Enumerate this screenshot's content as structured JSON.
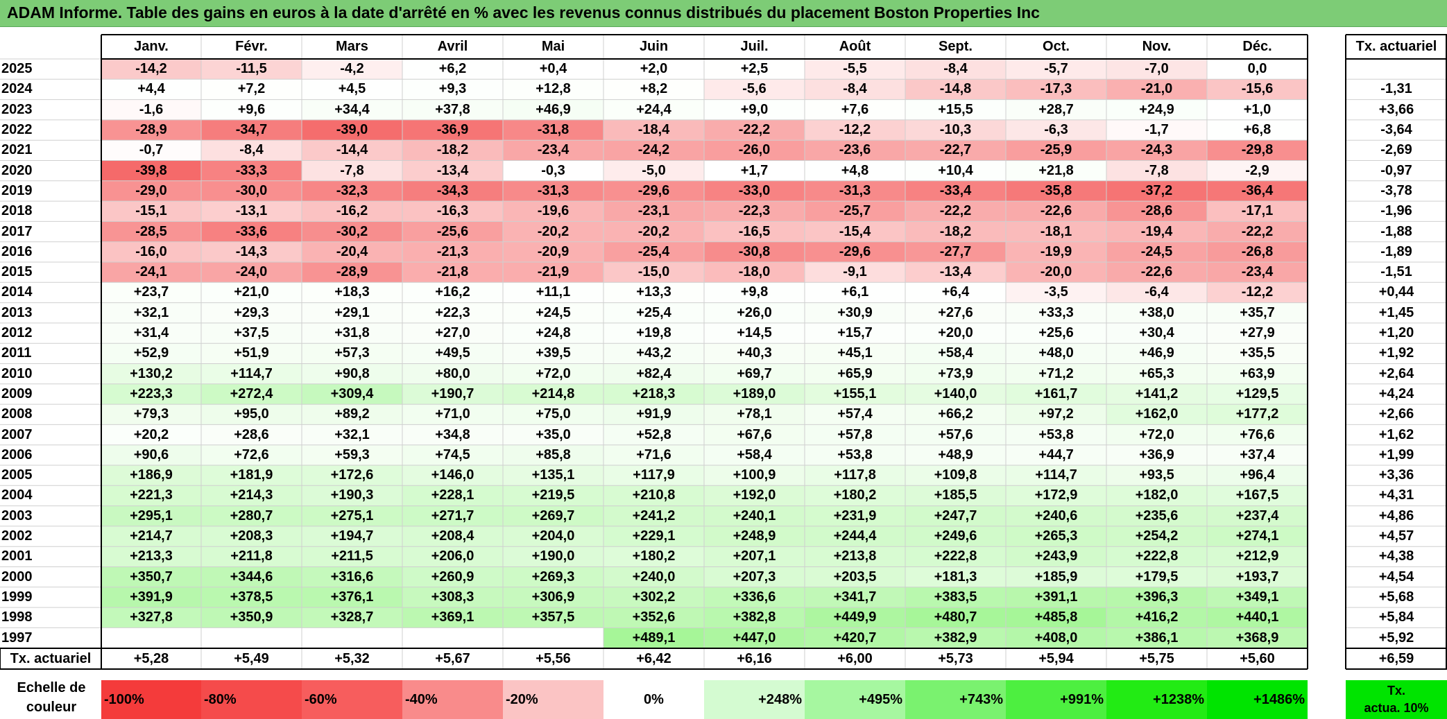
{
  "title": "ADAM Informe. Table des gains en euros à la date d'arrêté en % avec les revenus connus distribués du placement Boston Properties Inc",
  "months": [
    "Janv.",
    "Févr.",
    "Mars",
    "Avril",
    "Mai",
    "Juin",
    "Juil.",
    "Août",
    "Sept.",
    "Oct.",
    "Nov.",
    "Déc."
  ],
  "tx_header": "Tx. actuariel",
  "rows": [
    {
      "year": "2025",
      "values": [
        "-14,2",
        "-11,5",
        "-4,2",
        "+6,2",
        "+0,4",
        "+2,0",
        "+2,5",
        "-5,5",
        "-8,4",
        "-5,7",
        "-7,0",
        "0,0"
      ],
      "tx": ""
    },
    {
      "year": "2024",
      "values": [
        "+4,4",
        "+7,2",
        "+4,5",
        "+9,3",
        "+12,8",
        "+8,2",
        "-5,6",
        "-8,4",
        "-14,8",
        "-17,3",
        "-21,0",
        "-15,6"
      ],
      "tx": "-1,31"
    },
    {
      "year": "2023",
      "values": [
        "-1,6",
        "+9,6",
        "+34,4",
        "+37,8",
        "+46,9",
        "+24,4",
        "+9,0",
        "+7,6",
        "+15,5",
        "+28,7",
        "+24,9",
        "+1,0"
      ],
      "tx": "+3,66"
    },
    {
      "year": "2022",
      "values": [
        "-28,9",
        "-34,7",
        "-39,0",
        "-36,9",
        "-31,8",
        "-18,4",
        "-22,2",
        "-12,2",
        "-10,3",
        "-6,3",
        "-1,7",
        "+6,8"
      ],
      "tx": "-3,64"
    },
    {
      "year": "2021",
      "values": [
        "-0,7",
        "-8,4",
        "-14,4",
        "-18,2",
        "-23,4",
        "-24,2",
        "-26,0",
        "-23,6",
        "-22,7",
        "-25,9",
        "-24,3",
        "-29,8"
      ],
      "tx": "-2,69"
    },
    {
      "year": "2020",
      "values": [
        "-39,8",
        "-33,3",
        "-7,8",
        "-13,4",
        "-0,3",
        "-5,0",
        "+1,7",
        "+4,8",
        "+10,4",
        "+21,8",
        "-7,8",
        "-2,9"
      ],
      "tx": "-0,97"
    },
    {
      "year": "2019",
      "values": [
        "-29,0",
        "-30,0",
        "-32,3",
        "-34,3",
        "-31,3",
        "-29,6",
        "-33,0",
        "-31,3",
        "-33,4",
        "-35,8",
        "-37,2",
        "-36,4"
      ],
      "tx": "-3,78"
    },
    {
      "year": "2018",
      "values": [
        "-15,1",
        "-13,1",
        "-16,2",
        "-16,3",
        "-19,6",
        "-23,1",
        "-22,3",
        "-25,7",
        "-22,2",
        "-22,6",
        "-28,6",
        "-17,1"
      ],
      "tx": "-1,96"
    },
    {
      "year": "2017",
      "values": [
        "-28,5",
        "-33,6",
        "-30,2",
        "-25,6",
        "-20,2",
        "-20,2",
        "-16,5",
        "-15,4",
        "-18,2",
        "-18,1",
        "-19,4",
        "-22,2"
      ],
      "tx": "-1,88"
    },
    {
      "year": "2016",
      "values": [
        "-16,0",
        "-14,3",
        "-20,4",
        "-21,3",
        "-20,9",
        "-25,4",
        "-30,8",
        "-29,6",
        "-27,7",
        "-19,9",
        "-24,5",
        "-26,8"
      ],
      "tx": "-1,89"
    },
    {
      "year": "2015",
      "values": [
        "-24,1",
        "-24,0",
        "-28,9",
        "-21,8",
        "-21,9",
        "-15,0",
        "-18,0",
        "-9,1",
        "-13,4",
        "-20,0",
        "-22,6",
        "-23,4"
      ],
      "tx": "-1,51"
    },
    {
      "year": "2014",
      "values": [
        "+23,7",
        "+21,0",
        "+18,3",
        "+16,2",
        "+11,1",
        "+13,3",
        "+9,8",
        "+6,1",
        "+6,4",
        "-3,5",
        "-6,4",
        "-12,2"
      ],
      "tx": "+0,44"
    },
    {
      "year": "2013",
      "values": [
        "+32,1",
        "+29,3",
        "+29,1",
        "+22,3",
        "+24,5",
        "+25,4",
        "+26,0",
        "+30,9",
        "+27,6",
        "+33,3",
        "+38,0",
        "+35,7"
      ],
      "tx": "+1,45"
    },
    {
      "year": "2012",
      "values": [
        "+31,4",
        "+37,5",
        "+31,8",
        "+27,0",
        "+24,8",
        "+19,8",
        "+14,5",
        "+15,7",
        "+20,0",
        "+25,6",
        "+30,4",
        "+27,9"
      ],
      "tx": "+1,20"
    },
    {
      "year": "2011",
      "values": [
        "+52,9",
        "+51,9",
        "+57,3",
        "+49,5",
        "+39,5",
        "+43,2",
        "+40,3",
        "+45,1",
        "+58,4",
        "+48,0",
        "+46,9",
        "+35,5"
      ],
      "tx": "+1,92"
    },
    {
      "year": "2010",
      "values": [
        "+130,2",
        "+114,7",
        "+90,8",
        "+80,0",
        "+72,0",
        "+82,4",
        "+69,7",
        "+65,9",
        "+73,9",
        "+71,2",
        "+65,3",
        "+63,9"
      ],
      "tx": "+2,64"
    },
    {
      "year": "2009",
      "values": [
        "+223,3",
        "+272,4",
        "+309,4",
        "+190,7",
        "+214,8",
        "+218,3",
        "+189,0",
        "+155,1",
        "+140,0",
        "+161,7",
        "+141,2",
        "+129,5"
      ],
      "tx": "+4,24"
    },
    {
      "year": "2008",
      "values": [
        "+79,3",
        "+95,0",
        "+89,2",
        "+71,0",
        "+75,0",
        "+91,9",
        "+78,1",
        "+57,4",
        "+66,2",
        "+97,2",
        "+162,0",
        "+177,2"
      ],
      "tx": "+2,66"
    },
    {
      "year": "2007",
      "values": [
        "+20,2",
        "+28,6",
        "+32,1",
        "+34,8",
        "+35,0",
        "+52,8",
        "+67,6",
        "+57,8",
        "+57,6",
        "+53,8",
        "+72,0",
        "+76,6"
      ],
      "tx": "+1,62"
    },
    {
      "year": "2006",
      "values": [
        "+90,6",
        "+72,6",
        "+59,3",
        "+74,5",
        "+85,8",
        "+71,6",
        "+58,4",
        "+53,8",
        "+48,9",
        "+44,7",
        "+36,9",
        "+37,4"
      ],
      "tx": "+1,99"
    },
    {
      "year": "2005",
      "values": [
        "+186,9",
        "+181,9",
        "+172,6",
        "+146,0",
        "+135,1",
        "+117,9",
        "+100,9",
        "+117,8",
        "+109,8",
        "+114,7",
        "+93,5",
        "+96,4"
      ],
      "tx": "+3,36"
    },
    {
      "year": "2004",
      "values": [
        "+221,3",
        "+214,3",
        "+190,3",
        "+228,1",
        "+219,5",
        "+210,8",
        "+192,0",
        "+180,2",
        "+185,5",
        "+172,9",
        "+182,0",
        "+167,5"
      ],
      "tx": "+4,31"
    },
    {
      "year": "2003",
      "values": [
        "+295,1",
        "+280,7",
        "+275,1",
        "+271,7",
        "+269,7",
        "+241,2",
        "+240,1",
        "+231,9",
        "+247,7",
        "+240,6",
        "+235,6",
        "+237,4"
      ],
      "tx": "+4,86"
    },
    {
      "year": "2002",
      "values": [
        "+214,7",
        "+208,3",
        "+194,7",
        "+208,4",
        "+204,0",
        "+229,1",
        "+248,9",
        "+244,4",
        "+249,6",
        "+265,3",
        "+254,2",
        "+274,1"
      ],
      "tx": "+4,57"
    },
    {
      "year": "2001",
      "values": [
        "+213,3",
        "+211,8",
        "+211,5",
        "+206,0",
        "+190,0",
        "+180,2",
        "+207,1",
        "+213,8",
        "+222,8",
        "+243,9",
        "+222,8",
        "+212,9"
      ],
      "tx": "+4,38"
    },
    {
      "year": "2000",
      "values": [
        "+350,7",
        "+344,6",
        "+316,6",
        "+260,9",
        "+269,3",
        "+240,0",
        "+207,3",
        "+203,5",
        "+181,3",
        "+185,9",
        "+179,5",
        "+193,7"
      ],
      "tx": "+4,54"
    },
    {
      "year": "1999",
      "values": [
        "+391,9",
        "+378,5",
        "+376,1",
        "+308,3",
        "+306,9",
        "+302,2",
        "+336,6",
        "+341,7",
        "+383,5",
        "+391,1",
        "+396,3",
        "+349,1"
      ],
      "tx": "+5,68"
    },
    {
      "year": "1998",
      "values": [
        "+327,8",
        "+350,9",
        "+328,7",
        "+369,1",
        "+357,5",
        "+352,6",
        "+382,8",
        "+449,9",
        "+480,7",
        "+485,8",
        "+416,2",
        "+440,1"
      ],
      "tx": "+5,84"
    },
    {
      "year": "1997",
      "values": [
        "",
        "",
        "",
        "",
        "",
        "+489,1",
        "+447,0",
        "+420,7",
        "+382,9",
        "+408,0",
        "+386,1",
        "+368,9"
      ],
      "tx": "+5,92"
    }
  ],
  "footer": {
    "label": "Tx. actuariel",
    "values": [
      "+5,28",
      "+5,49",
      "+5,32",
      "+5,67",
      "+5,56",
      "+6,42",
      "+6,16",
      "+6,00",
      "+5,73",
      "+5,94",
      "+5,75",
      "+5,60"
    ],
    "tx": "+6,59"
  },
  "legend": {
    "label_line1": "Echelle de",
    "label_line2": "couleur",
    "items": [
      {
        "label": "-100%",
        "color": "#f43b3b",
        "align": "left"
      },
      {
        "label": "-80%",
        "color": "#f54b4b",
        "align": "left"
      },
      {
        "label": "-60%",
        "color": "#f75d5d",
        "align": "left"
      },
      {
        "label": "-40%",
        "color": "#f98b8b",
        "align": "left"
      },
      {
        "label": "-20%",
        "color": "#fbc4c4",
        "align": "left"
      },
      {
        "label": "0%",
        "color": "#ffffff",
        "align": "center"
      },
      {
        "label": "+248%",
        "color": "#d4fbd1",
        "align": "right"
      },
      {
        "label": "+495%",
        "color": "#a6f7a0",
        "align": "right"
      },
      {
        "label": "+743%",
        "color": "#7af26f",
        "align": "right"
      },
      {
        "label": "+991%",
        "color": "#4def40",
        "align": "right"
      },
      {
        "label": "+1238%",
        "color": "#22eb14",
        "align": "right"
      },
      {
        "label": "+1486%",
        "color": "#00e400",
        "align": "right"
      }
    ],
    "tx_line1": "Tx.",
    "tx_line2": "actua. 10%",
    "tx_color": "#00e400"
  },
  "colors": {
    "title_bg": "#7dcc76",
    "negative_max": "#f56b6b",
    "positive_max": "#00e400"
  }
}
